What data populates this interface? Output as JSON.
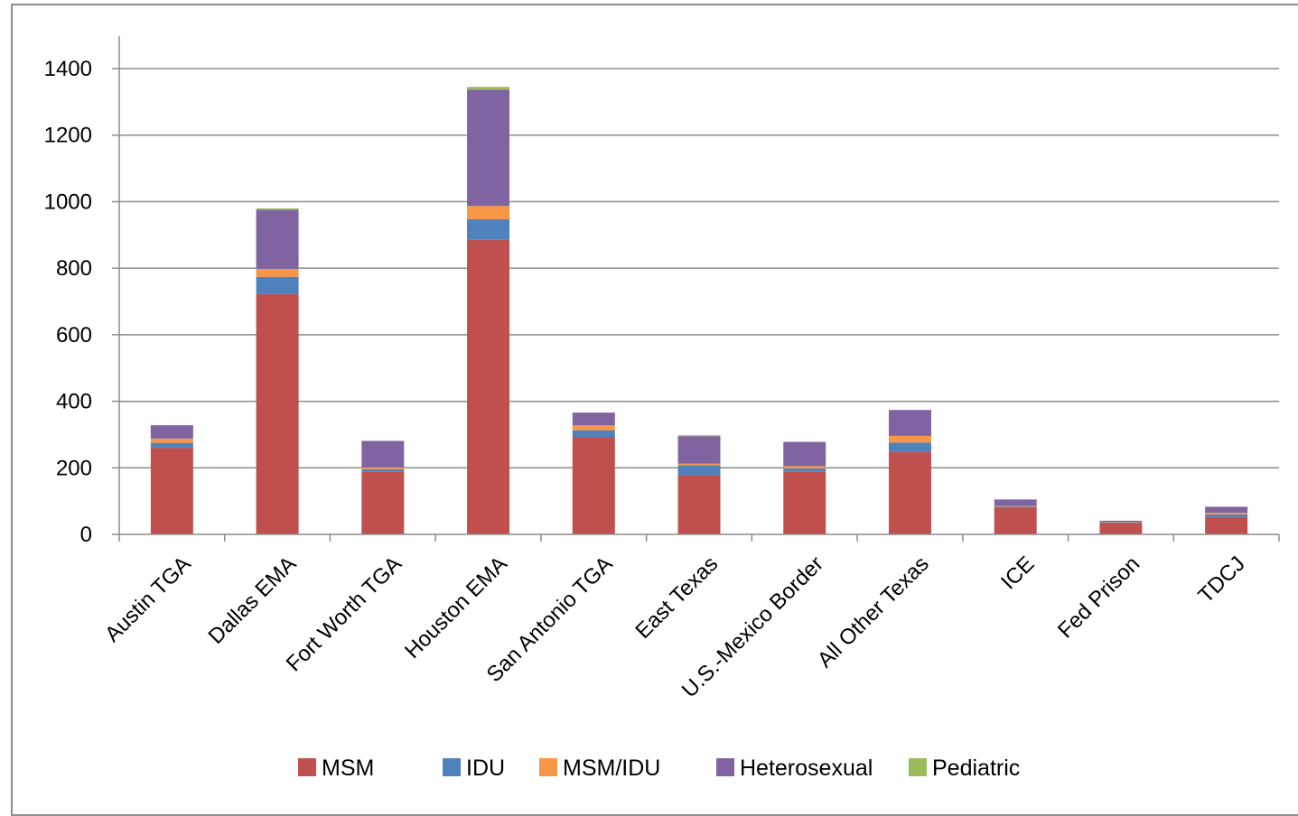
{
  "chart_data": {
    "type": "bar",
    "stacked": true,
    "categories": [
      "Austin TGA",
      "Dallas EMA",
      "Fort Worth TGA",
      "Houston EMA",
      "San Antonio TGA",
      "East Texas",
      "U.S.-Mexico Border",
      "All Other Texas",
      "ICE",
      "Fed Prison",
      "TDCJ"
    ],
    "series": [
      {
        "name": "MSM",
        "color": "#c0504d",
        "values": [
          260,
          722,
          188,
          885,
          293,
          178,
          188,
          248,
          80,
          34,
          52
        ]
      },
      {
        "name": "IDU",
        "color": "#4f81bd",
        "values": [
          15,
          52,
          8,
          62,
          20,
          30,
          10,
          28,
          3,
          2,
          8
        ]
      },
      {
        "name": "MSM/IDU",
        "color": "#f79646",
        "values": [
          13,
          24,
          5,
          40,
          15,
          5,
          7,
          20,
          2,
          1,
          5
        ]
      },
      {
        "name": "Heterosexual",
        "color": "#8064a2",
        "values": [
          40,
          178,
          80,
          350,
          38,
          82,
          73,
          78,
          20,
          4,
          18
        ]
      },
      {
        "name": "Pediatric",
        "color": "#9bbb59",
        "values": [
          0,
          4,
          0,
          8,
          0,
          3,
          0,
          0,
          0,
          0,
          0
        ]
      }
    ],
    "y_ticks": [
      "0",
      "200",
      "400",
      "600",
      "800",
      "1000",
      "1200",
      "1400"
    ],
    "ylim": [
      0,
      1400
    ],
    "grid": true,
    "legend_position": "bottom"
  }
}
